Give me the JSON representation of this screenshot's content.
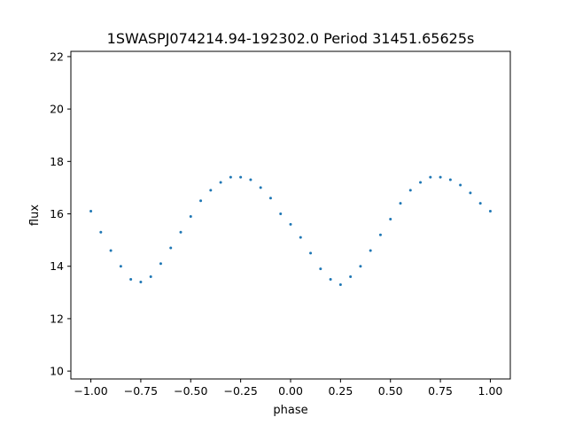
{
  "chart_data": {
    "type": "scatter",
    "title": "1SWASPJ074214.94-192302.0 Period 31451.65625s",
    "xlabel": "phase",
    "ylabel": "flux",
    "xlim": [
      -1.1,
      1.1
    ],
    "ylim": [
      9.7,
      22.2
    ],
    "x_ticks": [
      -1.0,
      -0.75,
      -0.5,
      -0.25,
      0.0,
      0.25,
      0.5,
      0.75,
      1.0
    ],
    "x_tick_labels": [
      "−1.00",
      "−0.75",
      "−0.50",
      "−0.25",
      "0.00",
      "0.25",
      "0.50",
      "0.75",
      "1.00"
    ],
    "y_ticks": [
      10,
      12,
      14,
      16,
      18,
      20,
      22
    ],
    "y_tick_labels": [
      "10",
      "12",
      "14",
      "16",
      "18",
      "20",
      "22"
    ],
    "grid": false,
    "series_color": "#1f77b4",
    "marker": "point",
    "series": [
      {
        "x": [
          -1.0,
          -0.95,
          -0.9,
          -0.85,
          -0.8,
          -0.75,
          -0.7,
          -0.65,
          -0.6,
          -0.55,
          -0.5,
          -0.45,
          -0.4,
          -0.35,
          -0.3,
          -0.25,
          -0.2,
          -0.15,
          -0.1,
          -0.05,
          0.0,
          0.05,
          0.1,
          0.15,
          0.2,
          0.25,
          0.3,
          0.35,
          0.4,
          0.45,
          0.5,
          0.55,
          0.6,
          0.65,
          0.7,
          0.75,
          0.8,
          0.85,
          0.9,
          0.95,
          1.0
        ],
        "y": [
          16.1,
          15.3,
          14.6,
          14.0,
          13.5,
          13.4,
          13.6,
          14.1,
          14.7,
          15.3,
          15.9,
          16.5,
          16.9,
          17.2,
          17.4,
          17.4,
          17.3,
          17.0,
          16.6,
          16.0,
          15.6,
          15.1,
          14.5,
          13.9,
          13.5,
          13.3,
          13.6,
          14.0,
          14.6,
          15.2,
          15.8,
          16.4,
          16.9,
          17.2,
          17.4,
          17.4,
          17.3,
          17.1,
          16.8,
          16.4,
          16.1
        ]
      }
    ]
  }
}
